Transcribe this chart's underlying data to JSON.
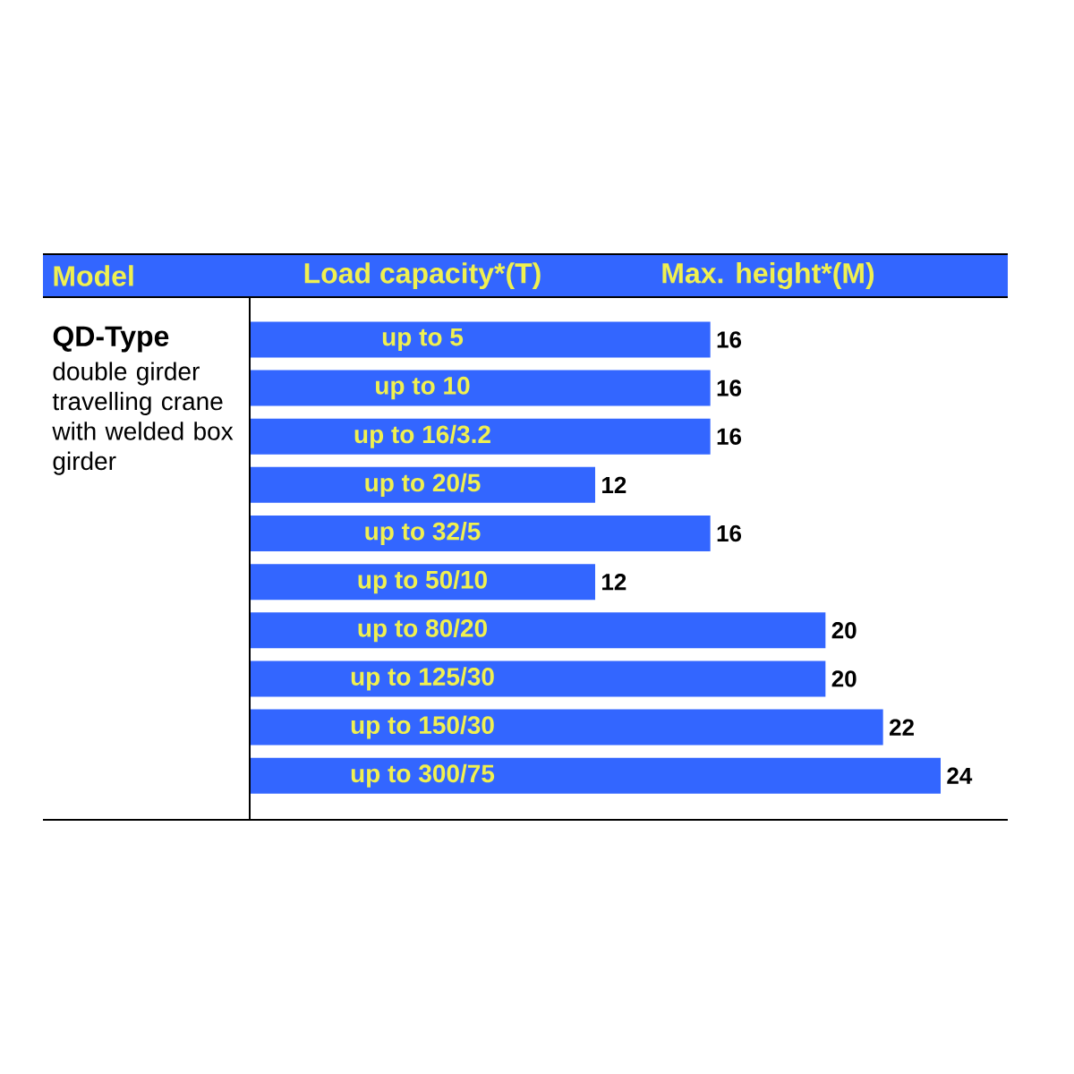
{
  "chart_data": {
    "type": "bar",
    "orientation": "horizontal",
    "title": "QD-Type",
    "subtitle": "double girder travelling crane with welded box girder",
    "ylabel": "Load capacity*(T)",
    "xlabel": "Max. height*(M)",
    "annotations": [
      "Model"
    ],
    "categories": [
      "up to 5",
      "up to 10",
      "up to 16/3.2",
      "up to 20/5",
      "up to 32/5",
      "up to 50/10",
      "up to 80/20",
      "up to 125/30",
      "up to 150/30",
      "up to 300/75"
    ],
    "values": [
      16,
      16,
      16,
      12,
      16,
      12,
      20,
      20,
      22,
      24
    ],
    "color": "#3366ff",
    "data_labels": true
  }
}
